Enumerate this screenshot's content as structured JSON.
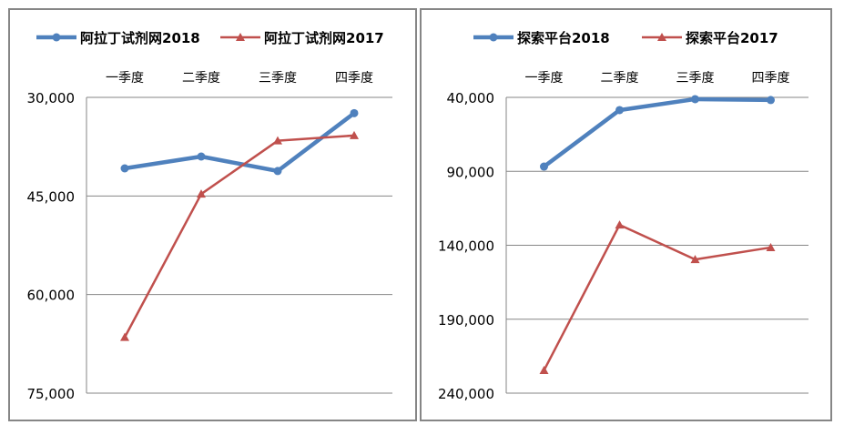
{
  "chart_data": [
    {
      "type": "line",
      "categories": [
        "一季度",
        "二季度",
        "三季度",
        "四季度"
      ],
      "y_inverted": true,
      "ylim": [
        30000,
        75000
      ],
      "yticks": [
        30000,
        45000,
        60000,
        75000
      ],
      "ytick_labels": [
        "30,000",
        "45,000",
        "60,000",
        "75,000"
      ],
      "grid": true,
      "legend_position": "top",
      "series": [
        {
          "name": "阿拉丁试剂网2018",
          "color": "#4F81BD",
          "marker": "circle",
          "values": [
            40800,
            39000,
            41200,
            32400
          ]
        },
        {
          "name": "阿拉丁试剂网2017",
          "color": "#C0504D",
          "marker": "triangle",
          "values": [
            66500,
            44700,
            36600,
            35800
          ]
        }
      ]
    },
    {
      "type": "line",
      "categories": [
        "一季度",
        "二季度",
        "三季度",
        "四季度"
      ],
      "y_inverted": true,
      "ylim": [
        40000,
        240000
      ],
      "yticks": [
        40000,
        90000,
        140000,
        190000,
        240000
      ],
      "ytick_labels": [
        "40,000",
        "90,000",
        "140,000",
        "190,000",
        "240,000"
      ],
      "grid": true,
      "legend_position": "top",
      "series": [
        {
          "name": "探索平台2018",
          "color": "#4F81BD",
          "marker": "circle",
          "values": [
            86800,
            48600,
            41200,
            41800
          ]
        },
        {
          "name": "探索平台2017",
          "color": "#C0504D",
          "marker": "triangle",
          "values": [
            224600,
            126200,
            149600,
            141500
          ]
        }
      ]
    }
  ]
}
